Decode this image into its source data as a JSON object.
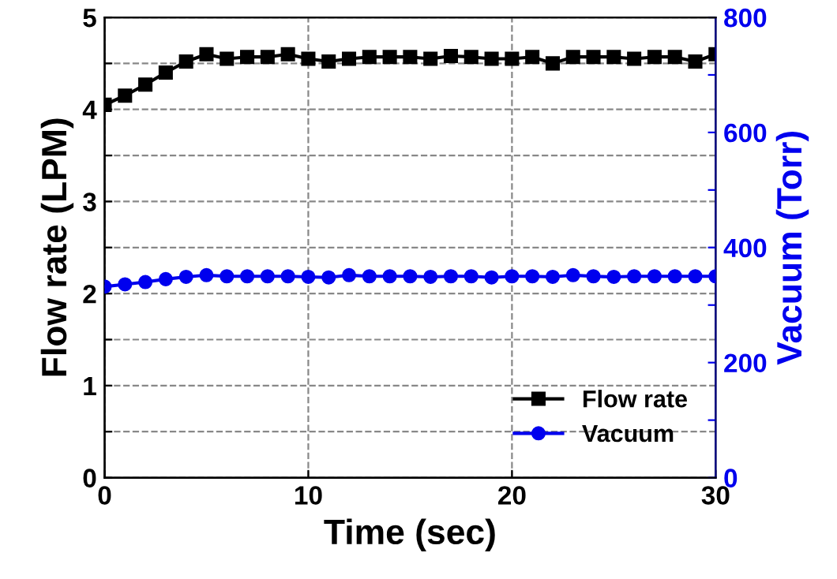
{
  "chart_data": {
    "type": "line",
    "xlabel": "Time (sec)",
    "ylabel": "Flow rate (LPM)",
    "y2label": "Vacuum (Torr)",
    "x": [
      0,
      1,
      2,
      3,
      4,
      5,
      6,
      7,
      8,
      9,
      10,
      11,
      12,
      13,
      14,
      15,
      16,
      17,
      18,
      19,
      20,
      21,
      22,
      23,
      24,
      25,
      26,
      27,
      28,
      29,
      30
    ],
    "series": [
      {
        "name": "Flow rate",
        "color": "#000000",
        "marker": "square",
        "values": [
          4.05,
          4.15,
          4.27,
          4.4,
          4.52,
          4.6,
          4.55,
          4.57,
          4.57,
          4.6,
          4.55,
          4.52,
          4.55,
          4.57,
          4.57,
          4.57,
          4.55,
          4.58,
          4.57,
          4.55,
          4.55,
          4.57,
          4.5,
          4.57,
          4.57,
          4.57,
          4.55,
          4.57,
          4.57,
          4.52,
          4.6
        ]
      },
      {
        "name": "Vacuum",
        "color": "#0000ee",
        "marker": "circle",
        "axis": "y2",
        "values": [
          332,
          336,
          340,
          345,
          349,
          352,
          350,
          350,
          350,
          350,
          349,
          348,
          352,
          350,
          350,
          350,
          349,
          350,
          350,
          348,
          350,
          350,
          349,
          352,
          350,
          349,
          350,
          350,
          350,
          350,
          350
        ]
      }
    ],
    "xlim": [
      0,
      30
    ],
    "xticks": [
      0,
      10,
      20,
      30
    ],
    "ylim": [
      0,
      5
    ],
    "yticks": [
      0,
      {
        "value": 0.5,
        "label": null
      },
      1,
      {
        "value": 1.5,
        "label": null
      },
      2,
      {
        "value": 2.5,
        "label": null
      },
      3,
      {
        "value": 3.5,
        "label": null
      },
      4,
      {
        "value": 4.5,
        "label": null
      },
      5
    ],
    "y2lim": [
      0,
      800
    ],
    "y2ticks": [
      0,
      {
        "value": 100,
        "label": null
      },
      200,
      {
        "value": 300,
        "label": null
      },
      400,
      {
        "value": 500,
        "label": null
      },
      600,
      {
        "value": 700,
        "label": null
      },
      800
    ],
    "grid": true,
    "legend": "bottom right",
    "line_style": "solid"
  }
}
